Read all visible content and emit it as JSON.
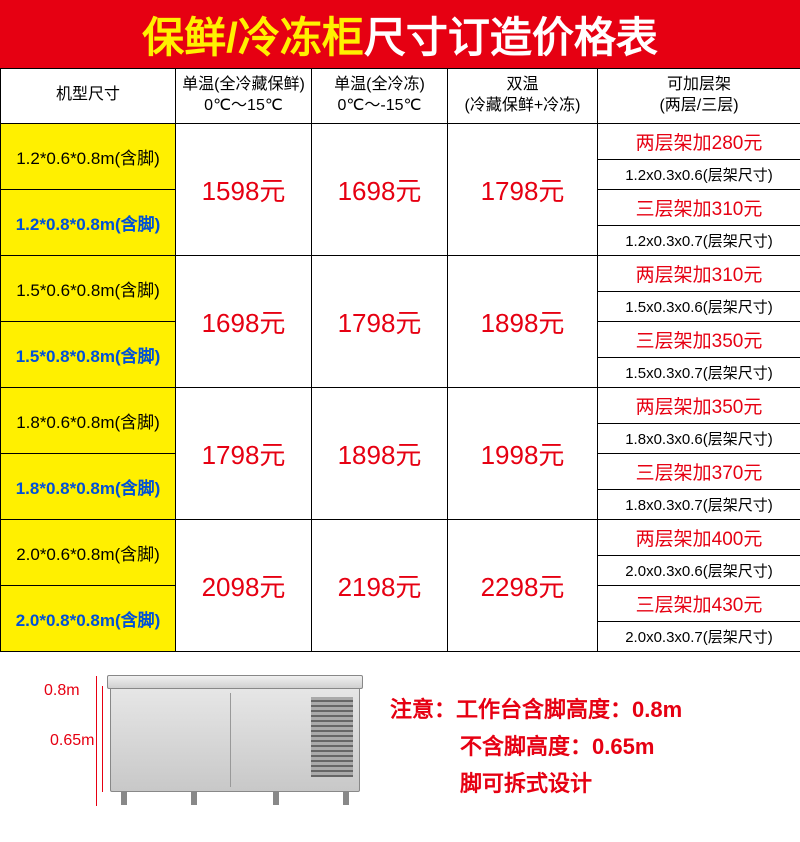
{
  "header": {
    "part1": "保鲜/冷冻柜",
    "part2": "尺寸订造价格表"
  },
  "colors": {
    "header_bg": "#e60012",
    "yellow": "#fff000",
    "white": "#ffffff",
    "price_red": "#e60012",
    "blue": "#0050d8",
    "border": "#000000"
  },
  "columns": {
    "c0": "机型尺寸",
    "c1_line1": "单温(全冷藏保鲜)",
    "c1_line2": "0℃～15℃",
    "c2_line1": "单温(全冷冻)",
    "c2_line2": "0℃～-15℃",
    "c3_line1": "双温",
    "c3_line2": "(冷藏保鲜+冷冻)",
    "c4_line1": "可加层架",
    "c4_line2": "(两层/三层)"
  },
  "groups": [
    {
      "size_a": "1.2*0.6*0.8m(含脚)",
      "size_b": "1.2*0.8*0.8m(含脚)",
      "p1": "1598元",
      "p2": "1698元",
      "p3": "1798元",
      "shelf_a_price": "两层架加280元",
      "shelf_a_dim": "1.2x0.3x0.6(层架尺寸)",
      "shelf_b_price": "三层架加310元",
      "shelf_b_dim": "1.2x0.3x0.7(层架尺寸)"
    },
    {
      "size_a": "1.5*0.6*0.8m(含脚)",
      "size_b": "1.5*0.8*0.8m(含脚)",
      "p1": "1698元",
      "p2": "1798元",
      "p3": "1898元",
      "shelf_a_price": "两层架加310元",
      "shelf_a_dim": "1.5x0.3x0.6(层架尺寸)",
      "shelf_b_price": "三层架加350元",
      "shelf_b_dim": "1.5x0.3x0.7(层架尺寸)"
    },
    {
      "size_a": "1.8*0.6*0.8m(含脚)",
      "size_b": "1.8*0.8*0.8m(含脚)",
      "p1": "1798元",
      "p2": "1898元",
      "p3": "1998元",
      "shelf_a_price": "两层架加350元",
      "shelf_a_dim": "1.8x0.3x0.6(层架尺寸)",
      "shelf_b_price": "三层架加370元",
      "shelf_b_dim": "1.8x0.3x0.7(层架尺寸)"
    },
    {
      "size_a": "2.0*0.6*0.8m(含脚)",
      "size_b": "2.0*0.8*0.8m(含脚)",
      "p1": "2098元",
      "p2": "2198元",
      "p3": "2298元",
      "shelf_a_price": "两层架加400元",
      "shelf_a_dim": "2.0x0.3x0.6(层架尺寸)",
      "shelf_b_price": "三层架加430元",
      "shelf_b_dim": "2.0x0.3x0.7(层架尺寸)"
    }
  ],
  "diagram": {
    "label_08": "0.8m",
    "label_065": "0.65m"
  },
  "notes": {
    "line1": "注意：工作台含脚高度：0.8m",
    "line2": "不含脚高度：0.65m",
    "line3": "脚可拆式设计"
  },
  "col_widths": {
    "c0": "175px",
    "c1": "136px",
    "c2": "136px",
    "c3": "150px",
    "c4": "203px"
  }
}
